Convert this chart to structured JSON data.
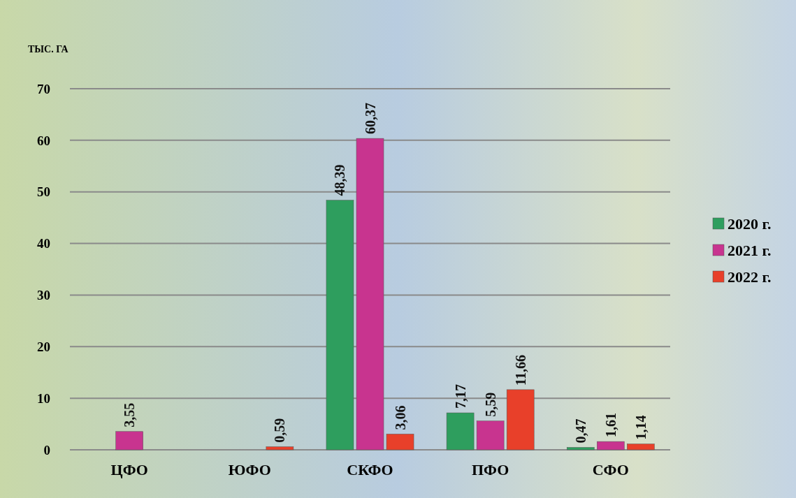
{
  "chart_data": {
    "type": "bar",
    "ylabel": "ТЫС. ГА",
    "categories": [
      "ЦФО",
      "ЮФО",
      "СКФО",
      "ПФО",
      "СФО"
    ],
    "series": [
      {
        "name": "2020 г.",
        "color": "#2e9e5e",
        "values": [
          null,
          null,
          48.39,
          7.17,
          0.47
        ],
        "value_labels": [
          null,
          null,
          "48,39",
          "7,17",
          "0,47"
        ]
      },
      {
        "name": "2021 г.",
        "color": "#c8348f",
        "values": [
          3.55,
          null,
          60.37,
          5.59,
          1.61
        ],
        "value_labels": [
          "3,55",
          null,
          "60,37",
          "5,59",
          "1,61"
        ]
      },
      {
        "name": "2022 г.",
        "color": "#e8402a",
        "values": [
          null,
          0.59,
          3.06,
          11.66,
          1.14
        ],
        "value_labels": [
          null,
          "0,59",
          "3,06",
          "11,66",
          "1,14"
        ]
      }
    ],
    "ylim": [
      0,
      70
    ],
    "yticks": [
      0,
      10,
      20,
      30,
      40,
      50,
      60,
      70
    ],
    "grid": "y",
    "legend": "right"
  }
}
